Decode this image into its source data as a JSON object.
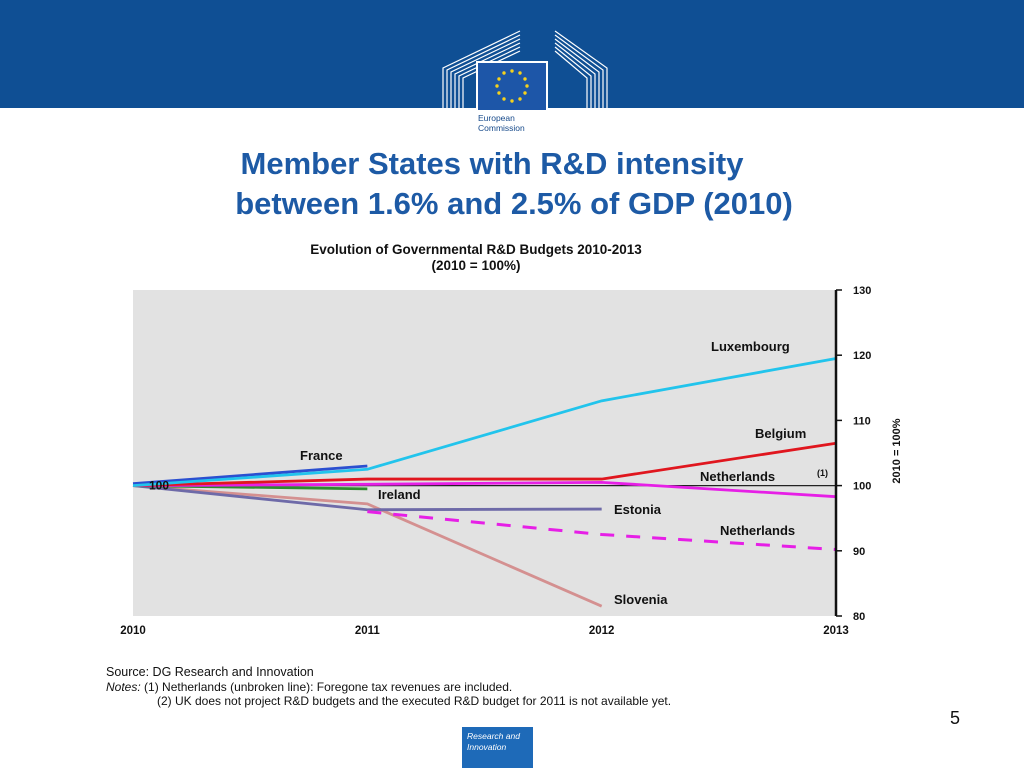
{
  "header": {
    "logo_text": "European Commission",
    "color": "#0f4f94"
  },
  "slide": {
    "title_line1": "Member States with R&D intensity",
    "title_line2": "between 1.6% and 2.5% of GDP (2010)",
    "page_number": "5",
    "badge_text": "Research and Innovation"
  },
  "chart_data": {
    "type": "line",
    "title": "Evolution of Governmental R&D Budgets 2010-2013",
    "subtitle": "(2010 = 100%)",
    "ylabel": "2010 = 100%",
    "x_ticks": [
      "2010",
      "2011",
      "2012",
      "2013"
    ],
    "y_ticks": [
      "80",
      "90",
      "100",
      "110",
      "120",
      "130"
    ],
    "ylim": [
      80,
      130
    ],
    "xlim": [
      2010,
      2013
    ],
    "y_axis_position": "right",
    "plot_background": "#e2e2e2",
    "grid": false,
    "baseline_label": "100",
    "series": [
      {
        "name": "Luxembourg",
        "color": "#22c4ec",
        "dashed": false,
        "points": [
          [
            2010,
            100
          ],
          [
            2011,
            102.5
          ],
          [
            2012,
            113
          ],
          [
            2013,
            119.5
          ]
        ]
      },
      {
        "name": "Belgium",
        "color": "#e0161e",
        "dashed": false,
        "points": [
          [
            2010,
            100
          ],
          [
            2011,
            101
          ],
          [
            2012,
            101
          ],
          [
            2013,
            106.5
          ]
        ]
      },
      {
        "name": "Netherlands (1)",
        "color": "#e61fe6",
        "dashed": false,
        "points": [
          [
            2010,
            100
          ],
          [
            2011,
            100.2
          ],
          [
            2012,
            100.5
          ],
          [
            2013,
            98.3
          ]
        ]
      },
      {
        "name": "Netherlands",
        "color": "#e61fe6",
        "dashed": true,
        "points": [
          [
            2011,
            96
          ],
          [
            2012,
            92.5
          ],
          [
            2013,
            90.2
          ]
        ]
      },
      {
        "name": "France",
        "color": "#2b4fd0",
        "dashed": false,
        "points": [
          [
            2010,
            100.3
          ],
          [
            2011,
            103
          ]
        ]
      },
      {
        "name": "Ireland",
        "color": "#2e8b2e",
        "dashed": false,
        "points": [
          [
            2010,
            100
          ],
          [
            2011,
            99.5
          ]
        ]
      },
      {
        "name": "Estonia",
        "color": "#6e6aa8",
        "dashed": false,
        "points": [
          [
            2010,
            100
          ],
          [
            2011,
            96.3
          ],
          [
            2012,
            96.4
          ]
        ]
      },
      {
        "name": "Slovenia",
        "color": "#d49090",
        "dashed": false,
        "points": [
          [
            2010,
            100
          ],
          [
            2011,
            97.2
          ],
          [
            2012,
            81.5
          ]
        ]
      }
    ],
    "labels": {
      "luxembourg": "Luxembourg",
      "belgium": "Belgium",
      "netherlands1": "Netherlands",
      "netherlands1_sup": "(1)",
      "france": "France",
      "ireland": "Ireland",
      "estonia": "Estonia",
      "netherlands2": "Netherlands",
      "slovenia": "Slovenia"
    }
  },
  "footer": {
    "source": "Source: DG Research and Innovation",
    "notes_label": "Notes:",
    "note1": "(1) Netherlands (unbroken line): Foregone tax revenues are included.",
    "note2": "(2) UK does not project R&D budgets and the executed R&D budget for 2011 is not available yet."
  }
}
